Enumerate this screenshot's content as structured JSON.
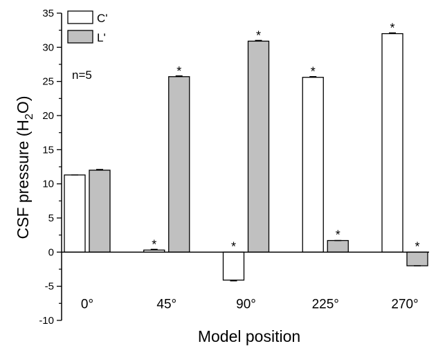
{
  "chart_data": {
    "type": "bar",
    "categories": [
      "0°",
      "45°",
      "90°",
      "225°",
      "270°"
    ],
    "series": [
      {
        "name": "C'",
        "color": "#ffffff",
        "values": [
          11.3,
          0.3,
          -4.1,
          25.6,
          32.0
        ],
        "errors": [
          0.0,
          0.1,
          0.1,
          0.1,
          0.1
        ],
        "significant": [
          false,
          true,
          true,
          true,
          true
        ]
      },
      {
        "name": "L'",
        "color": "#c0c0c0",
        "values": [
          12.0,
          25.7,
          30.9,
          1.7,
          -2.0
        ],
        "errors": [
          0.1,
          0.1,
          0.1,
          0.0,
          0.0
        ],
        "significant": [
          false,
          true,
          true,
          true,
          true
        ]
      }
    ],
    "significance_marker": "*",
    "xlabel": "Model position",
    "ylabel_main": "CSF pressure (H",
    "ylabel_sub": "2",
    "ylabel_end": "O)",
    "ylim": [
      -10,
      35
    ],
    "yticks": [
      -10,
      -5,
      0,
      5,
      10,
      15,
      20,
      25,
      30,
      35
    ],
    "annotation": "n=5",
    "legend_position": "top-left",
    "grid": false
  }
}
